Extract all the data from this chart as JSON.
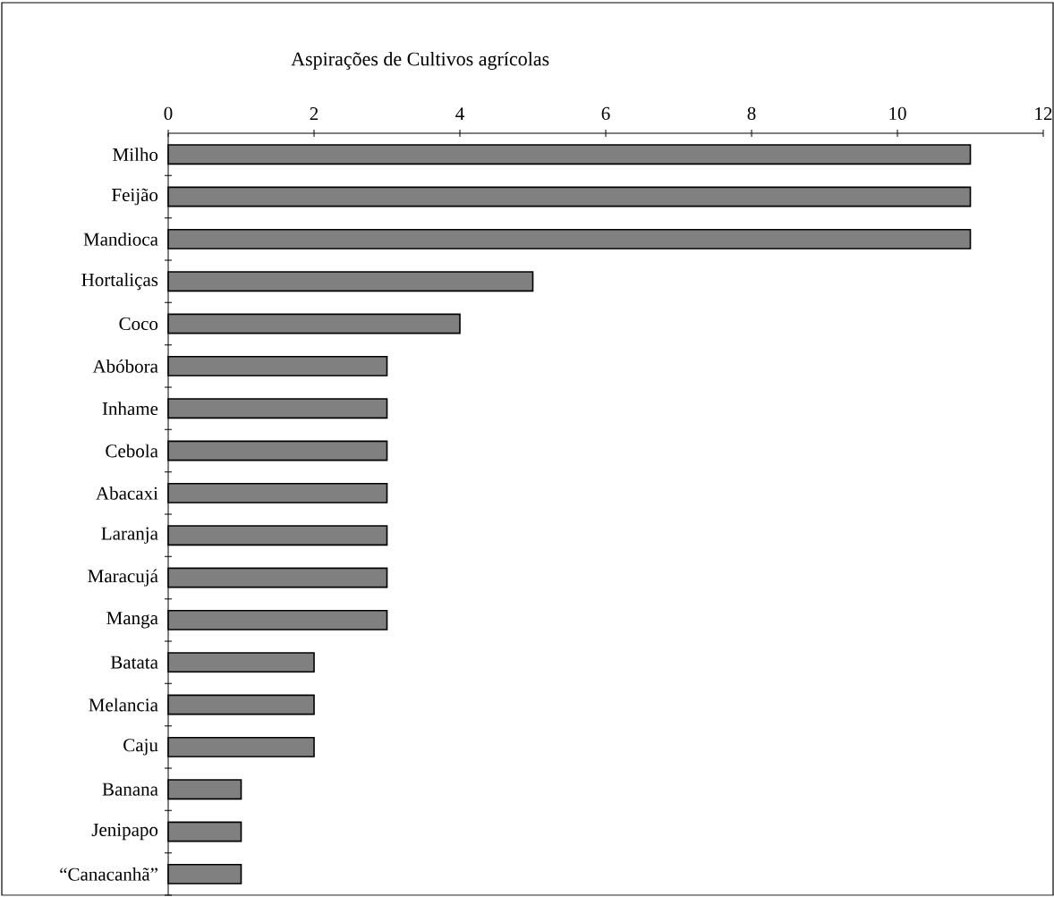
{
  "chart_data": {
    "type": "bar",
    "orientation": "horizontal",
    "title": "Aspirações de Cultivos agrícolas",
    "categories": [
      "Milho",
      "Feijão",
      "Mandioca",
      "Hortaliças",
      "Coco",
      "Abóbora",
      "Inhame",
      "Cebola",
      "Abacaxi",
      "Laranja",
      "Maracujá",
      "Manga",
      "Batata",
      "Melancia",
      "Caju",
      "Banana",
      "Jenipapo",
      "“Canacanhã”"
    ],
    "values": [
      11,
      11,
      11,
      5,
      4,
      3,
      3,
      3,
      3,
      3,
      3,
      3,
      2,
      2,
      2,
      1,
      1,
      1
    ],
    "color": "#808080",
    "xlim": [
      0,
      12
    ],
    "xticks": [
      0,
      2,
      4,
      6,
      8,
      10,
      12
    ],
    "grid": false
  }
}
